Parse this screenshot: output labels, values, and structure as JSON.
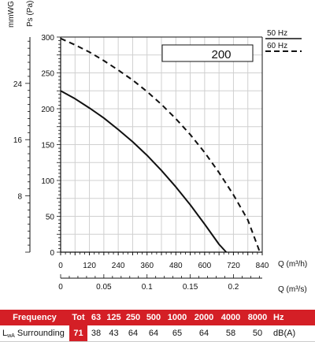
{
  "chart_data": {
    "type": "line",
    "x_axis_label": "Q (m³/h)",
    "x_axis_ticks": [
      0,
      120,
      240,
      360,
      480,
      600,
      720,
      840
    ],
    "x_axis_range": [
      0,
      840
    ],
    "x2_axis_label": "Q (m³/s)",
    "x2_axis_ticks": [
      "0",
      "0.05",
      "0.1",
      "0.15",
      "0.2"
    ],
    "x2_axis_tick_values": [
      0,
      0.05,
      0.1,
      0.15,
      0.2
    ],
    "y_axis_label": "Ps (Pa)",
    "y_axis_ticks": [
      0,
      50,
      100,
      150,
      200,
      250,
      300
    ],
    "y_axis_range": [
      0,
      300
    ],
    "y2_axis_label": "mmWG",
    "y2_axis_ticks": [
      "8",
      "16",
      "24"
    ],
    "y2_axis_tick_values": [
      8,
      16,
      24
    ],
    "grid": true,
    "model_label": "200",
    "series": [
      {
        "name": "50 Hz",
        "style": "solid",
        "x": [
          0,
          60,
          120,
          180,
          240,
          300,
          360,
          420,
          480,
          540,
          600,
          660,
          690
        ],
        "y": [
          225,
          214,
          201,
          187,
          171,
          154,
          135,
          114,
          91,
          66,
          39,
          11,
          0
        ]
      },
      {
        "name": "60 Hz",
        "style": "dashed",
        "x": [
          0,
          60,
          120,
          180,
          240,
          300,
          360,
          420,
          480,
          540,
          600,
          660,
          720,
          780,
          830
        ],
        "y": [
          298,
          289,
          279,
          267,
          254,
          240,
          224,
          206,
          186,
          164,
          139,
          111,
          80,
          45,
          0
        ]
      }
    ]
  },
  "table": {
    "header": [
      "Frequency",
      "Tot",
      "63",
      "125",
      "250",
      "500",
      "1000",
      "2000",
      "4000",
      "8000",
      "Hz"
    ],
    "row_label_main": "L",
    "row_label_sub": "wA",
    "row_label_rest": " Surrounding",
    "row_values": [
      "71",
      "38",
      "43",
      "64",
      "64",
      "65",
      "64",
      "58",
      "50",
      "dB(A)"
    ]
  },
  "colors": {
    "accent": "#d41f26",
    "curve": "#111111",
    "grid": "#d0d0d0"
  }
}
